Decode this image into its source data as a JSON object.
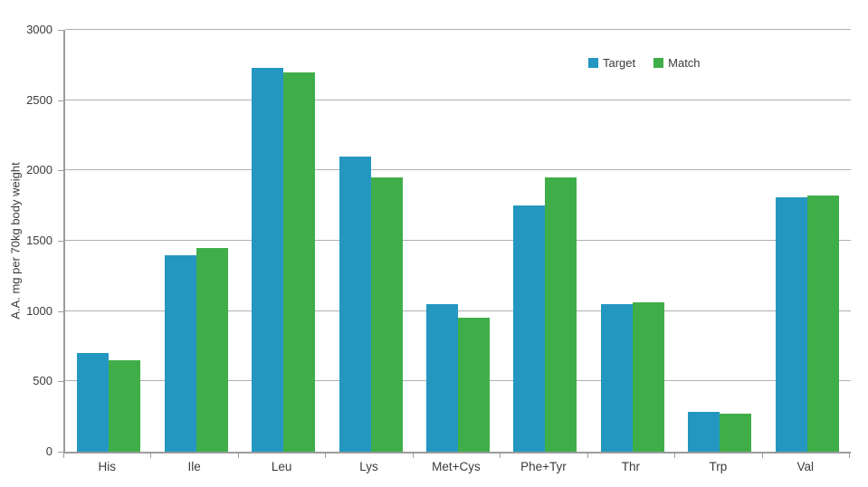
{
  "figure": {
    "background": "#ffffff",
    "text_color": "#3b3b3b",
    "gridline_color": "#b0b0b0",
    "axis_color": "#9c9c9c"
  },
  "chart_data": {
    "type": "bar",
    "title": "",
    "xlabel": "",
    "ylabel": "A.A. mg per 70kg body weight",
    "categories": [
      "His",
      "Ile",
      "Leu",
      "Lys",
      "Met+Cys",
      "Phe+Tyr",
      "Thr",
      "Trp",
      "Val"
    ],
    "series": [
      {
        "name": "Target",
        "color": "#2397c0",
        "values": [
          700,
          1400,
          2730,
          2100,
          1050,
          1750,
          1050,
          285,
          1810
        ]
      },
      {
        "name": "Match",
        "color": "#3fae49",
        "values": [
          650,
          1450,
          2700,
          1950,
          950,
          1950,
          1060,
          270,
          1825
        ]
      }
    ],
    "ylim": [
      0,
      3000
    ],
    "ytick_step": 500,
    "yticks": [
      "0",
      "500",
      "1000",
      "1500",
      "2000",
      "2500",
      "3000"
    ],
    "grid": true,
    "legend_position": "top-right"
  }
}
